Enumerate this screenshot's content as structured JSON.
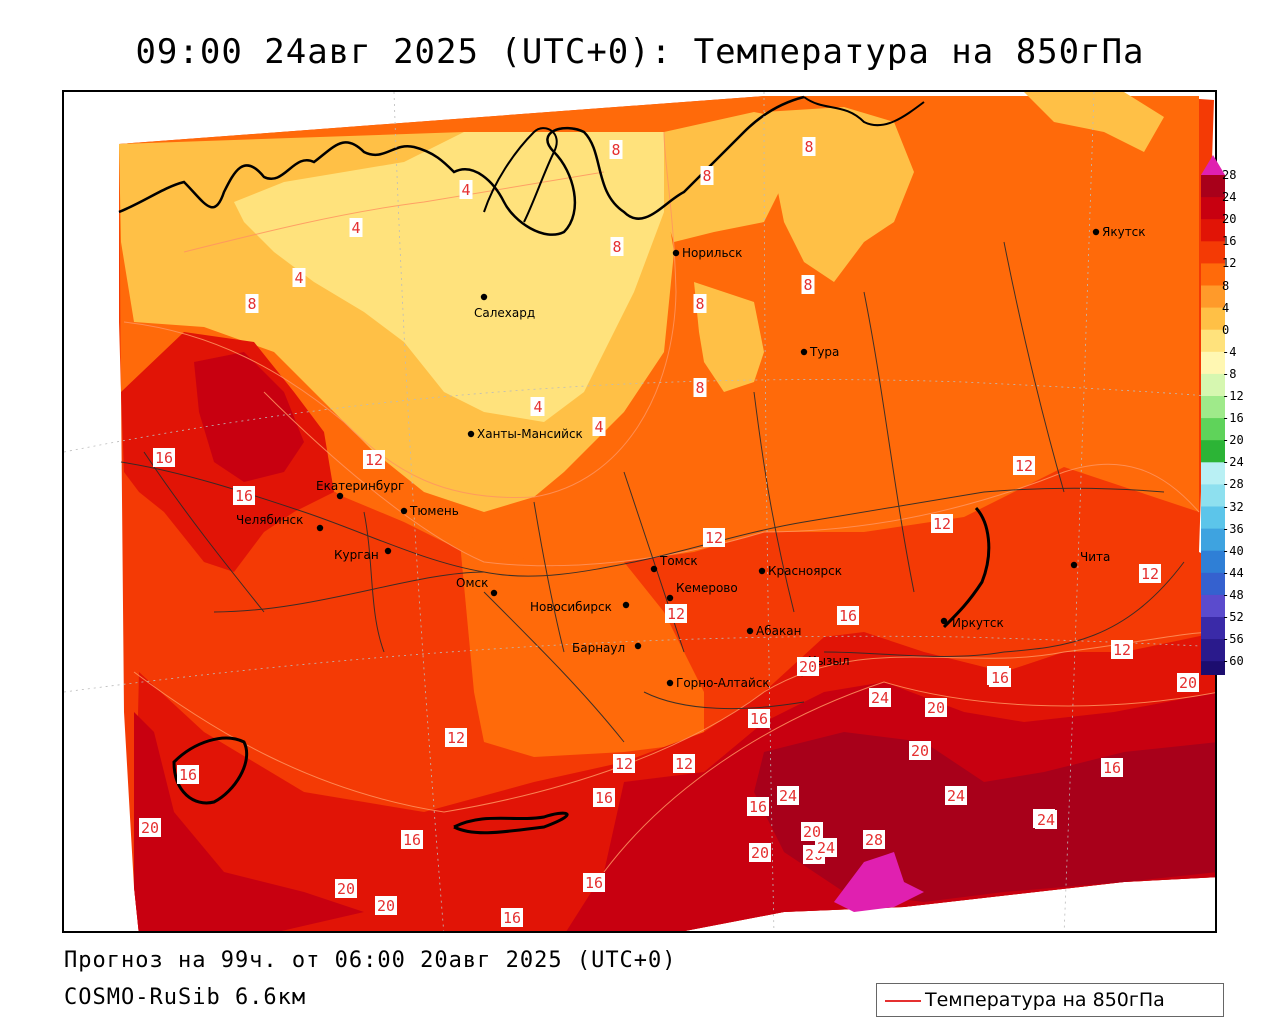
{
  "title": "09:00 24авг 2025 (UTC+0): Температура на 850гПа",
  "footer": {
    "forecast": "Прогноз на 99ч. от 06:00 20авг 2025 (UTC+0)",
    "model": "COSMO-RuSib 6.6км"
  },
  "legend": {
    "label": "Температура на 850гПа",
    "line_color": "#e53030"
  },
  "colorbar": {
    "levels": [
      "28",
      "24",
      "20",
      "16",
      "12",
      "8",
      "4",
      "0",
      "-4",
      "-8",
      "-12",
      "-16",
      "-20",
      "-24",
      "-28",
      "-32",
      "-36",
      "-40",
      "-44",
      "-48",
      "-52",
      "-56",
      "-60"
    ],
    "colors": [
      "#a8001a",
      "#c80010",
      "#e11406",
      "#f43a05",
      "#ff6a0a",
      "#ff9a2a",
      "#ffc046",
      "#ffe27c",
      "#fff7b2",
      "#d6f7b0",
      "#9fea8a",
      "#5fd35a",
      "#2cb436",
      "#b9f0f4",
      "#8ee0ef",
      "#5cc5ea",
      "#3ea3e0",
      "#2f7fd6",
      "#3561cf",
      "#5b4bcd",
      "#3a2aa8",
      "#2a1a8c",
      "#1c0d6f"
    ],
    "top_arrow_color": "#e020b0",
    "bottom_arrow_color": "#c020c0"
  },
  "cities": [
    {
      "name": "Якутск"
    },
    {
      "name": "Норильск"
    },
    {
      "name": "Салехард"
    },
    {
      "name": "Тура"
    },
    {
      "name": "Ханты-Мансийск"
    },
    {
      "name": "Екатеринбург"
    },
    {
      "name": "Тюмень"
    },
    {
      "name": "Челябинск"
    },
    {
      "name": "Курган"
    },
    {
      "name": "Омск"
    },
    {
      "name": "Томск"
    },
    {
      "name": "Новосибирск"
    },
    {
      "name": "Кемерово"
    },
    {
      "name": "Красноярск"
    },
    {
      "name": "Абакан"
    },
    {
      "name": "Барнаул"
    },
    {
      "name": "Горно-Алтайск"
    },
    {
      "name": "Кызыл"
    },
    {
      "name": "Иркутск"
    },
    {
      "name": "Чита"
    }
  ],
  "contour_labels": [
    "8",
    "8",
    "8",
    "8",
    "8",
    "8",
    "8",
    "4",
    "4",
    "4",
    "4",
    "8",
    "4",
    "4",
    "16",
    "16",
    "12",
    "12",
    "12",
    "12",
    "12",
    "12",
    "12",
    "12",
    "12",
    "16",
    "16",
    "16",
    "20",
    "24",
    "20",
    "20",
    "24",
    "20",
    "16",
    "16",
    "20",
    "16",
    "12",
    "16",
    "16",
    "24",
    "20",
    "20",
    "24",
    "28",
    "24",
    "24",
    "20",
    "16",
    "16",
    "16",
    "20",
    "20"
  ]
}
